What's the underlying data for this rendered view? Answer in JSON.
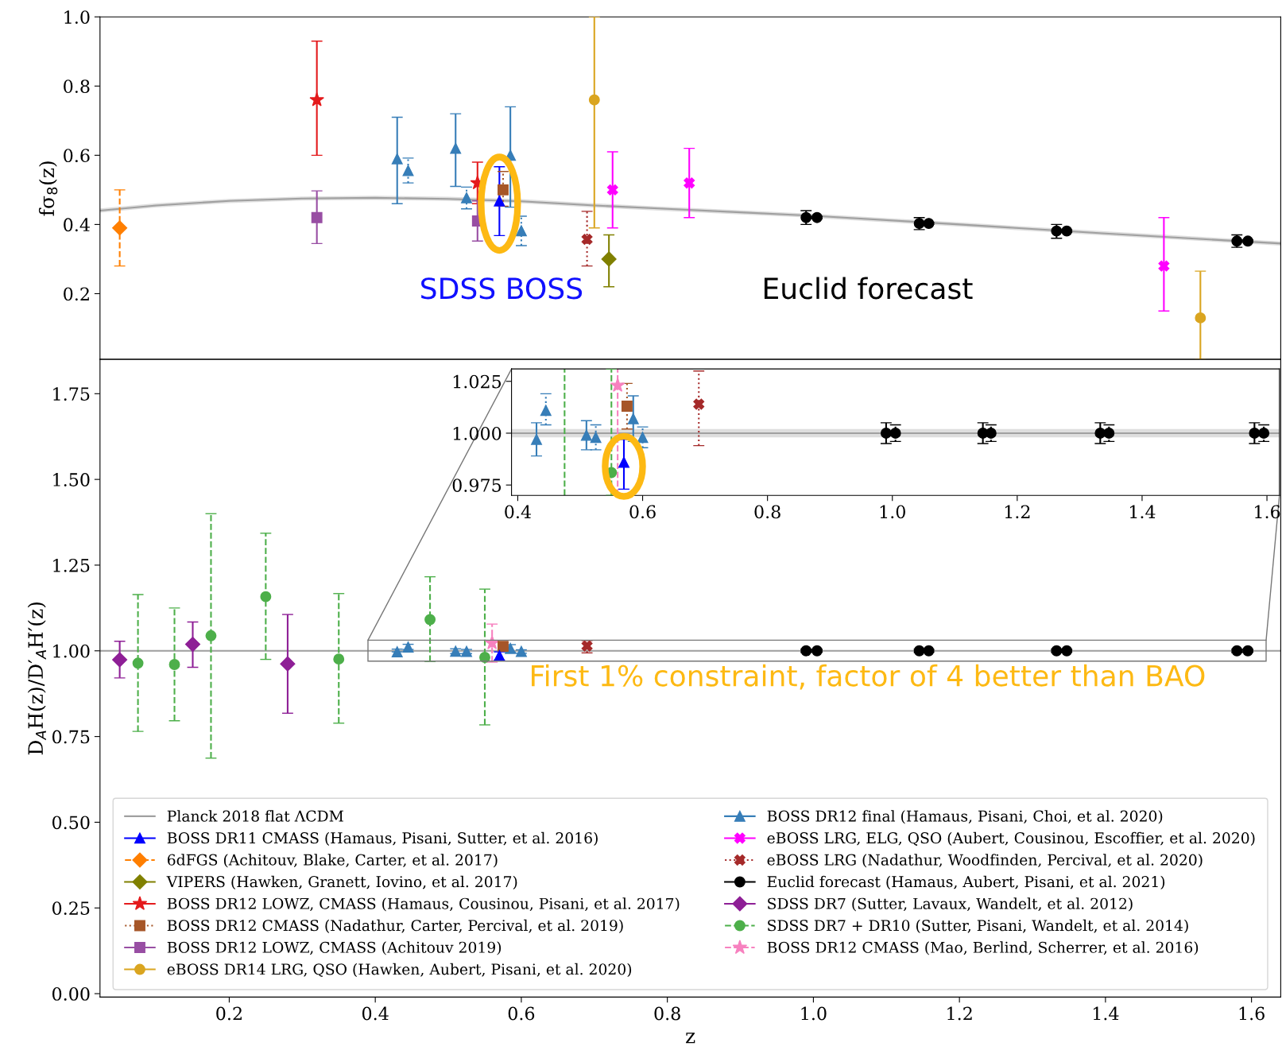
{
  "chart_data": [
    {
      "type": "scatter",
      "ylabel": "fσ$_{8}$(z)",
      "xlim": [
        0.023,
        1.64
      ],
      "ylim": [
        0.01,
        1.0
      ],
      "yticks": [
        0.2,
        0.4,
        0.6,
        0.8,
        {
          "value": 1.0,
          "label": "1.0"
        }
      ],
      "tick_labels": "y",
      "grid": false,
      "legend": "bottom",
      "annotations": [
        "SDSS BOSS",
        "Euclid forecast"
      ],
      "series": [
        {
          "name": "Planck 2018 flat ΛCDM",
          "type": "line",
          "color": "#a0a0a0",
          "line_style": "solid",
          "marker": "none",
          "x": [
            0.023,
            0.1,
            0.2,
            0.3,
            0.4,
            0.5,
            0.6,
            0.7,
            0.8,
            0.9,
            1.0,
            1.2,
            1.4,
            1.64
          ],
          "values": [
            0.44,
            0.455,
            0.468,
            0.475,
            0.477,
            0.474,
            0.467,
            0.455,
            0.445,
            0.435,
            0.425,
            0.4,
            0.374,
            0.345
          ],
          "lower": [
            0.434,
            0.449,
            0.462,
            0.469,
            0.471,
            0.468,
            0.461,
            0.449,
            0.439,
            0.429,
            0.419,
            0.394,
            0.368,
            0.339
          ],
          "upper": [
            0.446,
            0.461,
            0.474,
            0.481,
            0.483,
            0.48,
            0.473,
            0.461,
            0.451,
            0.441,
            0.431,
            0.406,
            0.38,
            0.351
          ]
        },
        {
          "name": "BOSS DR11 CMASS (Hamaus, Pisani, Sutter, et al. 2016)",
          "color": "#0000ff",
          "marker": "triangle",
          "line_style": "solid",
          "x": [
            0.57
          ],
          "values": [
            0.468
          ],
          "errors": [
            [
              0.368,
              0.567
            ]
          ]
        },
        {
          "name": "6dFGS (Achitouv, Blake, Carter, et al. 2017)",
          "color": "#ff7f00",
          "marker": "diamond",
          "line_style": "dashed",
          "x": [
            0.05
          ],
          "values": [
            0.39
          ],
          "errors": [
            [
              0.28,
              0.5
            ]
          ]
        },
        {
          "name": "VIPERS (Hawken, Granett, Iovino, et al. 2017)",
          "color": "#808000",
          "marker": "diamond",
          "line_style": "solid",
          "x": [
            0.72
          ],
          "values": [
            0.3
          ],
          "errors": [
            [
              0.22,
              0.37
            ]
          ]
        },
        {
          "name": "BOSS DR12 LOWZ, CMASS (Hamaus, Cousinou, Pisani, et al. 2017)",
          "color": "#e41a1c",
          "marker": "star",
          "line_style": "solid",
          "x": [
            0.32,
            0.54
          ],
          "values": [
            0.76,
            0.52
          ],
          "errors": [
            [
              0.6,
              0.93
            ],
            [
              0.46,
              0.58
            ]
          ]
        },
        {
          "name": "BOSS DR12 CMASS (Nadathur, Carter, Percival, et al. 2019)",
          "color": "#a65628",
          "marker": "square",
          "line_style": "dotted",
          "x": [
            0.575
          ],
          "values": [
            0.5
          ],
          "errors": [
            [
              0.453,
              0.553
            ]
          ]
        },
        {
          "name": "BOSS DR12 LOWZ, CMASS (Achitouv 2019)",
          "color": "#984ea3",
          "marker": "square",
          "line_style": "solid",
          "x": [
            0.32,
            0.54
          ],
          "values": [
            0.42,
            0.41
          ],
          "errors": [
            [
              0.345,
              0.497
            ],
            [
              0.352,
              0.468
            ]
          ]
        },
        {
          "name": "eBOSS DR14 LRG, QSO (Hawken, Aubert, Pisani, et al. 2020)",
          "color": "#daa520",
          "marker": "circle",
          "line_style": "solid",
          "x": [
            0.7,
            1.53
          ],
          "values": [
            0.76,
            0.13
          ],
          "errors": [
            [
              0.39,
              1.0
            ],
            [
              0.01,
              0.265
            ]
          ]
        },
        {
          "name": "BOSS DR12 final (Hamaus, Pisani, Choi, et al. 2020)",
          "color": "#377eb8",
          "marker": "triangle",
          "line_style": "solid",
          "x": [
            0.43,
            0.51,
            0.585
          ],
          "values": [
            0.59,
            0.62,
            0.6
          ],
          "errors": [
            [
              0.46,
              0.71
            ],
            [
              0.51,
              0.72
            ],
            [
              0.45,
              0.74
            ]
          ]
        },
        {
          "color": "#377eb8",
          "marker": "triangle",
          "line_style": "dotted",
          "x": [
            0.445,
            0.525,
            0.6
          ],
          "values": [
            0.556,
            0.477,
            0.382
          ],
          "errors": [
            [
              0.52,
              0.592
            ],
            [
              0.445,
              0.508
            ],
            [
              0.339,
              0.424
            ]
          ]
        },
        {
          "name": "eBOSS LRG, ELG, QSO (Aubert, Cousinou, Escoffier, et al. 2020)",
          "color": "#ff00ff",
          "marker": "cross",
          "line_style": "solid",
          "x": [
            0.725,
            0.83,
            1.48
          ],
          "values": [
            0.5,
            0.52,
            0.28
          ],
          "errors": [
            [
              0.39,
              0.61
            ],
            [
              0.42,
              0.62
            ],
            [
              0.15,
              0.42
            ]
          ]
        },
        {
          "name": "eBOSS LRG (Nadathur, Woodfinden, Percival, et al. 2020)",
          "color": "#a52a2a",
          "marker": "cross",
          "line_style": "dotted",
          "x": [
            0.69
          ],
          "values": [
            0.357
          ],
          "errors": [
            [
              0.28,
              0.438
            ]
          ]
        },
        {
          "name": "Euclid forecast (Hamaus, Aubert, Pisani, et al. 2021)",
          "color": "#000000",
          "marker": "circle",
          "line_style": "solid",
          "x": [
            0.99,
            1.145,
            1.333,
            1.58
          ],
          "values": [
            0.42,
            0.403,
            0.381,
            0.352
          ],
          "errors": [
            [
              0.4,
              0.44
            ],
            [
              0.385,
              0.42
            ],
            [
              0.36,
              0.4
            ],
            [
              0.334,
              0.37
            ]
          ]
        },
        {
          "color": "#000000",
          "marker": "circle",
          "line_style": "dotted",
          "x": [
            1.005,
            1.158,
            1.347,
            1.595
          ],
          "values": [
            0.42,
            0.403,
            0.381,
            0.352
          ],
          "errors": [
            [
              0.417,
              0.423
            ],
            [
              0.4,
              0.406
            ],
            [
              0.378,
              0.384
            ],
            [
              0.349,
              0.355
            ]
          ]
        }
      ]
    },
    {
      "type": "scatter",
      "xlabel": "z",
      "ylabel": "D$_{A}$H(z)/D′$_{A}$H′(z)",
      "xlim": [
        0.023,
        1.64
      ],
      "ylim": [
        -0.01,
        1.85
      ],
      "xticks": [
        0.2,
        0.4,
        0.6,
        0.8,
        {
          "value": 1.0,
          "label": "1.0"
        },
        1.2,
        1.4,
        1.6
      ],
      "yticks": [
        {
          "value": 0.0,
          "label": "0.00"
        },
        {
          "value": 0.25,
          "label": "0.25"
        },
        {
          "value": 0.5,
          "label": "0.50"
        },
        {
          "value": 0.75,
          "label": "0.75"
        },
        {
          "value": 1.0,
          "label": "1.00"
        },
        {
          "value": 1.25,
          "label": "1.25"
        },
        {
          "value": 1.5,
          "label": "1.50"
        },
        {
          "value": 1.75,
          "label": "1.75"
        }
      ],
      "grid": false,
      "legend": "bottom",
      "annotations": [
        "First 1% constraint, factor of 4 better than BAO"
      ],
      "series": [
        {
          "type": "line",
          "color": "#a0a0a0",
          "line_style": "solid",
          "marker": "none",
          "x": [
            0.023,
            1.64
          ],
          "values": [
            1.0,
            1.0
          ],
          "lower": [
            0.998,
            0.998
          ],
          "upper": [
            1.002,
            1.002
          ]
        },
        {
          "name": "SDSS DR7 (Sutter, Lavaux, Wandelt, et al. 2012)",
          "color": "#8e1f96",
          "marker": "diamond",
          "line_style": "solid",
          "x": [
            0.05,
            0.15,
            0.28
          ],
          "values": [
            0.974,
            1.019,
            0.962
          ],
          "errors": [
            [
              0.921,
              1.028
            ],
            [
              0.952,
              1.084
            ],
            [
              0.818,
              1.106
            ]
          ]
        },
        {
          "name": "SDSS DR7 + DR10 (Sutter, Pisani, Wandelt, et al. 2014)",
          "color": "#4daf4a",
          "marker": "circle",
          "line_style": "dashed",
          "x": [
            0.075,
            0.125,
            0.175,
            0.25,
            0.35,
            0.475,
            0.55
          ],
          "values": [
            0.964,
            0.96,
            1.044,
            1.158,
            0.976,
            1.091,
            0.981
          ],
          "errors": [
            [
              0.765,
              1.164
            ],
            [
              0.796,
              1.125
            ],
            [
              0.687,
              1.4
            ],
            [
              0.975,
              1.343
            ],
            [
              0.789,
              1.167
            ],
            [
              0.969,
              1.216
            ],
            [
              0.784,
              1.18
            ]
          ]
        },
        {
          "name": "BOSS DR12 CMASS (Mao, Berlind, Scherrer, et al. 2016)",
          "color": "#f781bf",
          "marker": "star",
          "line_style": "dashed",
          "x": [
            0.56
          ],
          "values": [
            1.023
          ],
          "errors": [
            [
              0.967,
              1.078
            ]
          ]
        },
        {
          "color": "#377eb8",
          "marker": "triangle",
          "line_style": "solid",
          "x": [
            0.43,
            0.51,
            0.585
          ],
          "values": [
            0.997,
            0.999,
            1.007
          ],
          "errors": [
            [
              0.997,
              1.005
            ],
            [
              0.992,
              1.006
            ],
            [
              0.996,
              1.018
            ]
          ]
        },
        {
          "color": "#377eb8",
          "marker": "triangle",
          "line_style": "dotted",
          "x": [
            0.445,
            0.525,
            0.6
          ],
          "values": [
            1.011,
            0.998,
            0.998
          ],
          "errors": [
            [
              1.004,
              1.019
            ],
            [
              0.992,
              1.004
            ],
            [
              0.993,
              1.003
            ]
          ]
        },
        {
          "color": "#a65628",
          "marker": "square",
          "line_style": "dotted",
          "x": [
            0.575
          ],
          "values": [
            1.013
          ],
          "errors": [
            [
              1.002,
              1.024
            ]
          ]
        },
        {
          "color": "#0000ff",
          "marker": "triangle",
          "line_style": "solid",
          "x": [
            0.57
          ],
          "values": [
            0.986
          ],
          "errors": [
            [
              0.973,
              0.997
            ]
          ]
        },
        {
          "color": "#a52a2a",
          "marker": "cross",
          "line_style": "dotted",
          "x": [
            0.69
          ],
          "values": [
            1.014
          ],
          "errors": [
            [
              0.994,
              1.03
            ]
          ]
        },
        {
          "color": "#000000",
          "marker": "circle",
          "line_style": "solid",
          "x": [
            0.99,
            1.145,
            1.333,
            1.58
          ],
          "values": [
            1.0,
            1.0,
            1.0,
            1.0
          ],
          "errors": [
            [
              0.995,
              1.005
            ],
            [
              0.995,
              1.005
            ],
            [
              0.995,
              1.005
            ],
            [
              0.995,
              1.005
            ]
          ]
        },
        {
          "color": "#000000",
          "marker": "circle",
          "line_style": "dotted",
          "x": [
            1.005,
            1.158,
            1.347,
            1.595
          ],
          "values": [
            1.0,
            1.0,
            1.0,
            1.0
          ],
          "errors": [
            [
              0.996,
              1.004
            ],
            [
              0.996,
              1.004
            ],
            [
              0.996,
              1.004
            ],
            [
              0.996,
              1.004
            ]
          ]
        }
      ]
    },
    {
      "type": "scatter",
      "xlim": [
        0.39,
        1.62
      ],
      "ylim": [
        0.97,
        1.031
      ],
      "xticks": [
        0.4,
        0.6,
        0.8,
        {
          "value": 1.0,
          "label": "1.0"
        },
        1.2,
        1.4,
        1.6
      ],
      "ref_lines": [
        {
          "axis": "x",
          "value": 0.475,
          "color": "#4daf4a",
          "line_style": "dashed"
        },
        {
          "axis": "x",
          "value": 0.56,
          "color": "#f781bf",
          "line_style": "dashed"
        }
      ],
      "yticks": [
        {
          "value": 0.975,
          "label": "0.975"
        },
        {
          "value": 1.0,
          "label": "1.000"
        },
        {
          "value": 1.025,
          "label": "1.025"
        }
      ],
      "grid": false,
      "series": [
        {
          "type": "line",
          "color": "#a0a0a0",
          "line_style": "solid",
          "marker": "none",
          "x": [
            0.39,
            1.62
          ],
          "values": [
            1.0,
            1.0
          ],
          "lower": [
            0.998,
            0.998
          ],
          "upper": [
            1.002,
            1.002
          ]
        },
        {
          "color": "#4daf4a",
          "marker": "circle",
          "line_style": "dashed",
          "x": [
            0.55
          ],
          "values": [
            0.981
          ],
          "errors": [
            [
              0.97,
              1.031
            ]
          ]
        },
        {
          "color": "#f781bf",
          "marker": "star",
          "line_style": "dashed",
          "x": [
            0.56
          ],
          "values": [
            1.023
          ]
        },
        {
          "color": "#377eb8",
          "marker": "triangle",
          "line_style": "solid",
          "x": [
            0.43,
            0.51,
            0.585
          ],
          "values": [
            0.997,
            0.999,
            1.007
          ],
          "errors": [
            [
              0.989,
              1.005
            ],
            [
              0.992,
              1.006
            ],
            [
              0.996,
              1.018
            ]
          ]
        },
        {
          "color": "#377eb8",
          "marker": "triangle",
          "line_style": "dotted",
          "x": [
            0.445,
            0.525,
            0.6
          ],
          "values": [
            1.011,
            0.998,
            0.998
          ],
          "errors": [
            [
              1.004,
              1.019
            ],
            [
              0.992,
              1.004
            ],
            [
              0.993,
              1.003
            ]
          ]
        },
        {
          "color": "#a65628",
          "marker": "square",
          "line_style": "dotted",
          "x": [
            0.575
          ],
          "values": [
            1.013
          ],
          "errors": [
            [
              1.002,
              1.024
            ]
          ]
        },
        {
          "color": "#0000ff",
          "marker": "triangle",
          "line_style": "solid",
          "x": [
            0.57
          ],
          "values": [
            0.986
          ],
          "errors": [
            [
              0.973,
              0.997
            ]
          ]
        },
        {
          "color": "#a52a2a",
          "marker": "cross",
          "line_style": "dotted",
          "x": [
            0.69
          ],
          "values": [
            1.014
          ],
          "errors": [
            [
              0.994,
              1.03
            ]
          ]
        },
        {
          "color": "#000000",
          "marker": "circle",
          "line_style": "solid",
          "x": [
            0.99,
            1.145,
            1.333,
            1.58
          ],
          "values": [
            1.0,
            1.0,
            1.0,
            1.0
          ],
          "errors": [
            [
              0.995,
              1.005
            ],
            [
              0.995,
              1.005
            ],
            [
              0.995,
              1.005
            ],
            [
              0.995,
              1.005
            ]
          ]
        },
        {
          "color": "#000000",
          "marker": "circle",
          "line_style": "dotted",
          "x": [
            1.005,
            1.158,
            1.347,
            1.595
          ],
          "values": [
            1.0,
            1.0,
            1.0,
            1.0
          ],
          "errors": [
            [
              0.996,
              1.004
            ],
            [
              0.996,
              1.004
            ],
            [
              0.996,
              1.004
            ],
            [
              0.996,
              1.004
            ]
          ]
        }
      ]
    }
  ]
}
